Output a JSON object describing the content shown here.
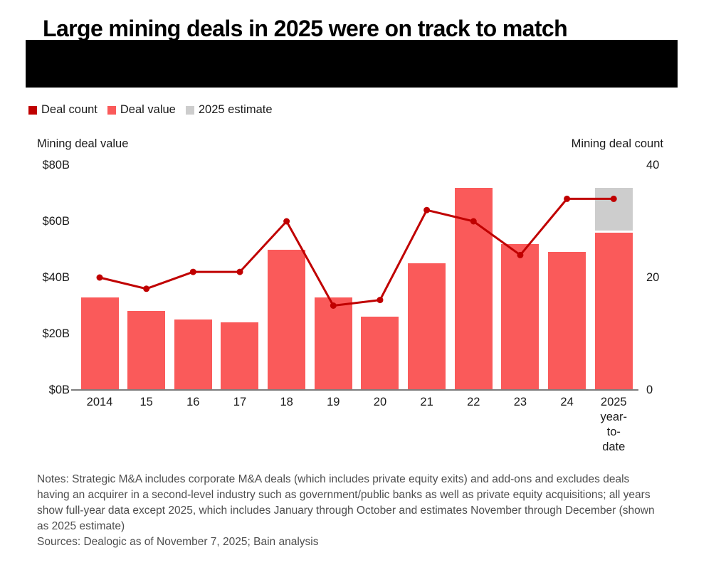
{
  "header": {
    "title": "Large mining deals in 2025 were on track to match"
  },
  "legend": {
    "items": [
      {
        "label": "Deal count",
        "color": "#c00000"
      },
      {
        "label": "Deal value",
        "color": "#fa5a5a"
      },
      {
        "label": "2025 estimate",
        "color": "#cdcdcd"
      }
    ]
  },
  "chart_data": {
    "type": "bar",
    "subtype": "combo bar + line, dual axis",
    "title": "Large mining deals in 2025 were on track to match",
    "categories": [
      "2014",
      "15",
      "16",
      "17",
      "18",
      "19",
      "20",
      "21",
      "22",
      "23",
      "24",
      "2025 year-to-date"
    ],
    "x_labels_display": [
      "2014",
      "15",
      "16",
      "17",
      "18",
      "19",
      "20",
      "21",
      "22",
      "23",
      "24",
      "2025\nyear-\nto-\ndate"
    ],
    "series": [
      {
        "name": "Deal value",
        "type": "bar",
        "axis": "left",
        "unit": "$B",
        "color": "#fa5a5a",
        "values": [
          33,
          28,
          25,
          24,
          50,
          33,
          26,
          45,
          72,
          52,
          49,
          56
        ]
      },
      {
        "name": "2025 estimate",
        "type": "bar-stacked-segment",
        "axis": "left",
        "unit": "$B",
        "color": "#cdcdcd",
        "values": [
          0,
          0,
          0,
          0,
          0,
          0,
          0,
          0,
          0,
          0,
          0,
          16
        ],
        "note": "gray segment stacked on 2025 year-to-date bar; total 2025 estimate = 72"
      },
      {
        "name": "Deal count",
        "type": "line",
        "axis": "right",
        "color": "#c00000",
        "values": [
          20,
          18,
          21,
          21,
          30,
          15,
          16,
          32,
          30,
          24,
          34,
          34
        ]
      }
    ],
    "left_axis": {
      "title": "Mining deal value",
      "tick_labels": [
        "$80B",
        "$60B",
        "$40B",
        "$20B",
        "$0B"
      ],
      "tick_values": [
        80,
        60,
        40,
        20,
        0
      ],
      "range": [
        0,
        80
      ]
    },
    "right_axis": {
      "title": "Mining deal count",
      "tick_labels": [
        "40",
        "20",
        "0"
      ],
      "tick_values": [
        40,
        20,
        0
      ],
      "range": [
        0,
        40
      ]
    },
    "grid": false,
    "legend_position": "top-left"
  },
  "footer": {
    "notes": "Notes: Strategic M&A includes corporate M&A deals (which includes private equity exits) and add-ons and excludes deals having an acquirer in a second-level industry such as government/public banks as well as private equity acquisitions; all years show full-year data except 2025, which includes January through October and estimates November through December (shown as 2025 estimate)",
    "sources": "Sources: Dealogic as of November 7, 2025; Bain analysis"
  }
}
